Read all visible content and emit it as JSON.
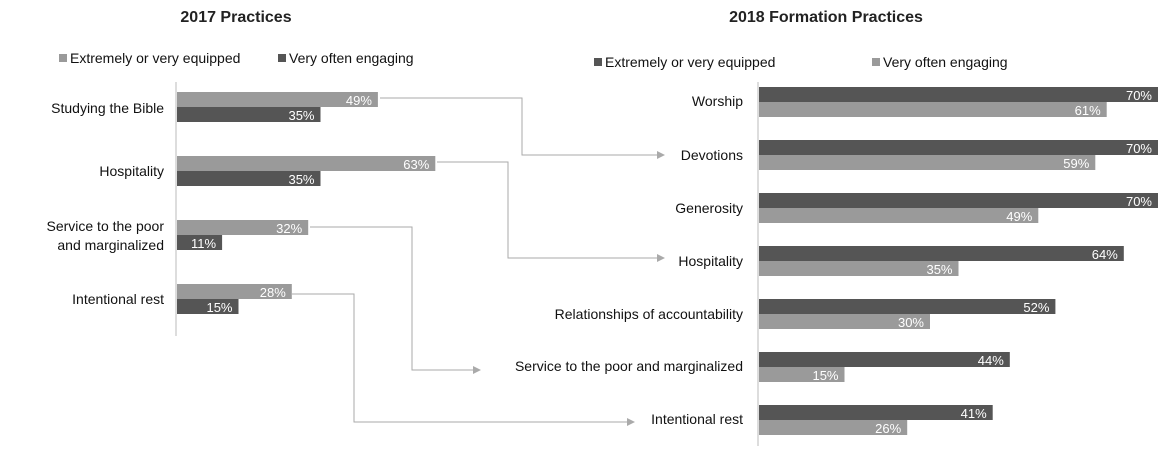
{
  "colors": {
    "dark": "#555555",
    "light": "#9a9a9a",
    "connector": "#aaaaaa",
    "axis": "#bbbbbb"
  },
  "chart_data": [
    {
      "type": "bar",
      "orientation": "horizontal",
      "title": "2017 Practices",
      "categories": [
        "Studying the Bible",
        "Hospitality",
        "Service to the poor and marginalized",
        "Intentional rest"
      ],
      "series": [
        {
          "name": "Extremely or very equipped",
          "color": "#9a9a9a",
          "values": [
            49,
            63,
            32,
            28
          ],
          "labels": [
            "49%",
            "63%",
            "32%",
            "28%"
          ]
        },
        {
          "name": "Very often engaging",
          "color": "#555555",
          "values": [
            35,
            35,
            11,
            15
          ],
          "labels": [
            "35%",
            "35%",
            "11%",
            "15%"
          ]
        }
      ],
      "xlim": [
        0,
        100
      ],
      "legend": "top",
      "grid": false
    },
    {
      "type": "bar",
      "orientation": "horizontal",
      "title": "2018 Formation Practices",
      "categories": [
        "Worship",
        "Devotions",
        "Generosity",
        "Hospitality",
        "Relationships of accountability",
        "Service to the poor and marginalized",
        "Intentional rest"
      ],
      "series": [
        {
          "name": "Extremely or very equipped",
          "color": "#555555",
          "values": [
            70,
            70,
            70,
            64,
            52,
            44,
            41
          ],
          "labels": [
            "70%",
            "70%",
            "70%",
            "64%",
            "52%",
            "44%",
            "41%"
          ]
        },
        {
          "name": "Very often engaging",
          "color": "#9a9a9a",
          "values": [
            61,
            59,
            49,
            35,
            30,
            15,
            26
          ],
          "labels": [
            "61%",
            "59%",
            "49%",
            "35%",
            "30%",
            "15%",
            "26%"
          ]
        }
      ],
      "xlim": [
        0,
        70
      ],
      "legend": "top",
      "grid": false
    }
  ],
  "connections": [
    {
      "from": "Studying the Bible",
      "to": "Devotions"
    },
    {
      "from": "Hospitality",
      "to": "Hospitality"
    },
    {
      "from": "Service to the poor and marginalized",
      "to": "Service to the poor and marginalized"
    },
    {
      "from": "Intentional rest",
      "to": "Intentional rest"
    }
  ]
}
